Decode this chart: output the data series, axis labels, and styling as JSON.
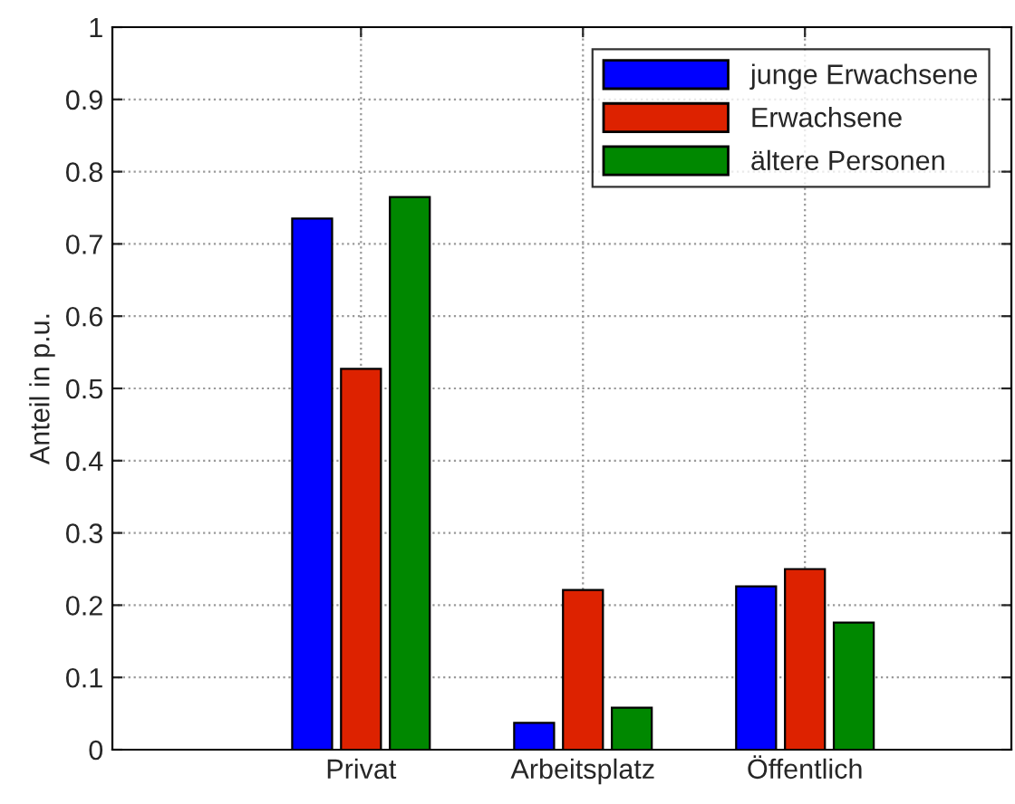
{
  "chart_data": {
    "type": "bar",
    "ylabel": "Anteil in p.u.",
    "categories": [
      "Privat",
      "Arbeitsplatz",
      "Öffentlich"
    ],
    "series": [
      {
        "name": "junge Erwachsene",
        "color": "#0000ff",
        "values": [
          0.735,
          0.037,
          0.226
        ]
      },
      {
        "name": "Erwachsene",
        "color": "#dd2200",
        "values": [
          0.527,
          0.221,
          0.25
        ]
      },
      {
        "name": "ältere Personen",
        "color": "#008800",
        "values": [
          0.765,
          0.058,
          0.176
        ]
      }
    ],
    "ylim": [
      0,
      1
    ],
    "yticks": [
      0,
      0.1,
      0.2,
      0.3,
      0.4,
      0.5,
      0.6,
      0.7,
      0.8,
      0.9,
      1
    ],
    "grid": true,
    "legend": "top right"
  }
}
